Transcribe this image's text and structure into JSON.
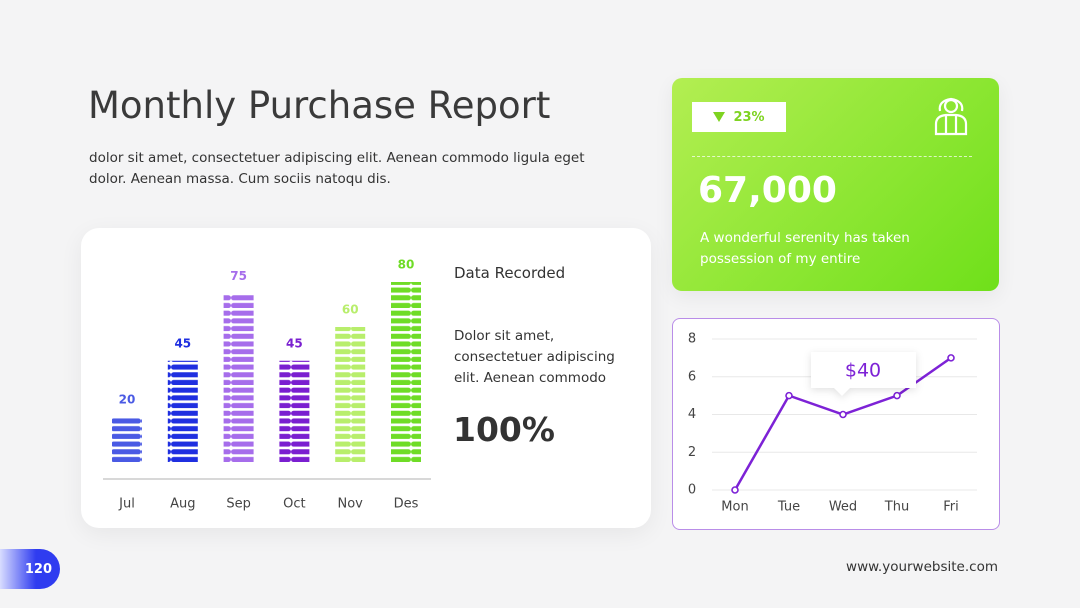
{
  "header": {
    "title": "Monthly Purchase Report",
    "text": "dolor sit amet, consectetuer adipiscing elit. Aenean commodo ligula eget dolor. Aenean massa. Cum sociis natoqu dis."
  },
  "data_panel": {
    "title": "Data Recorded",
    "text": "Dolor sit amet, consectetuer adipiscing elit. Aenean commodo",
    "total": "100%"
  },
  "stat_card": {
    "change": "23%",
    "value": "67,000",
    "text": "A wonderful serenity has taken possession of my entire"
  },
  "footer": {
    "page": "120",
    "website": "www.yourwebsite.com"
  },
  "chart_data": [
    {
      "type": "bar",
      "categories": [
        "Jul",
        "Aug",
        "Sep",
        "Oct",
        "Nov",
        "Des"
      ],
      "values": [
        20,
        45,
        75,
        45,
        60,
        80
      ],
      "colors": [
        "#4a5ae4",
        "#1f2fe0",
        "#a66deb",
        "#7a1fd0",
        "#b8ee6c",
        "#6fdc26"
      ]
    },
    {
      "type": "line",
      "categories": [
        "Mon",
        "Tue",
        "Wed",
        "Thu",
        "Fri"
      ],
      "values": [
        0,
        5,
        4,
        5,
        7
      ],
      "color": "#7d22d6",
      "ylim": [
        0,
        8
      ],
      "yticks": [
        0,
        2,
        4,
        6,
        8
      ],
      "grid": true,
      "annotation": "$40"
    }
  ]
}
